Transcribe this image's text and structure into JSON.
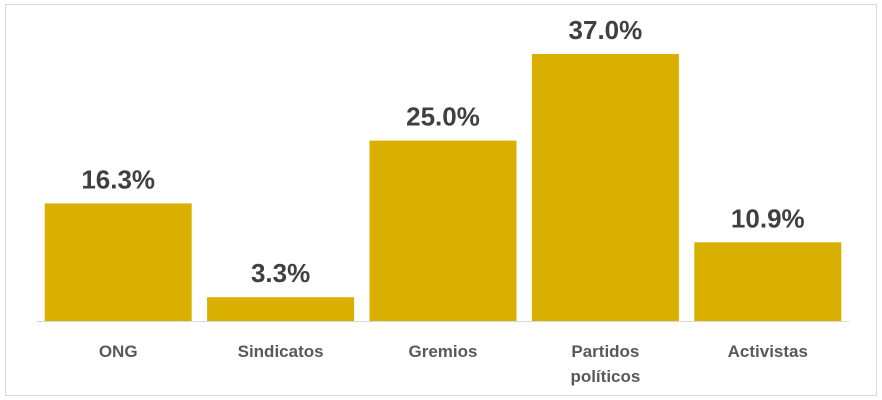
{
  "chart_data": {
    "type": "bar",
    "categories": [
      [
        "ONG"
      ],
      [
        "Sindicatos"
      ],
      [
        "Gremios"
      ],
      [
        "Partidos",
        "políticos"
      ],
      [
        "Activistas"
      ]
    ],
    "values": [
      16.3,
      3.3,
      25.0,
      37.0,
      10.9
    ],
    "value_labels": [
      "16.3%",
      "3.3%",
      "25.0%",
      "37.0%",
      "10.9%"
    ],
    "unit": "%",
    "title": "",
    "xlabel": "",
    "ylabel": "",
    "ylim": [
      0,
      37
    ],
    "grid": false,
    "legend": "none",
    "colors": {
      "bar": "#DAB000",
      "axis": "#d9d9d9",
      "value_text": "#404040",
      "category_text": "#595959"
    }
  }
}
